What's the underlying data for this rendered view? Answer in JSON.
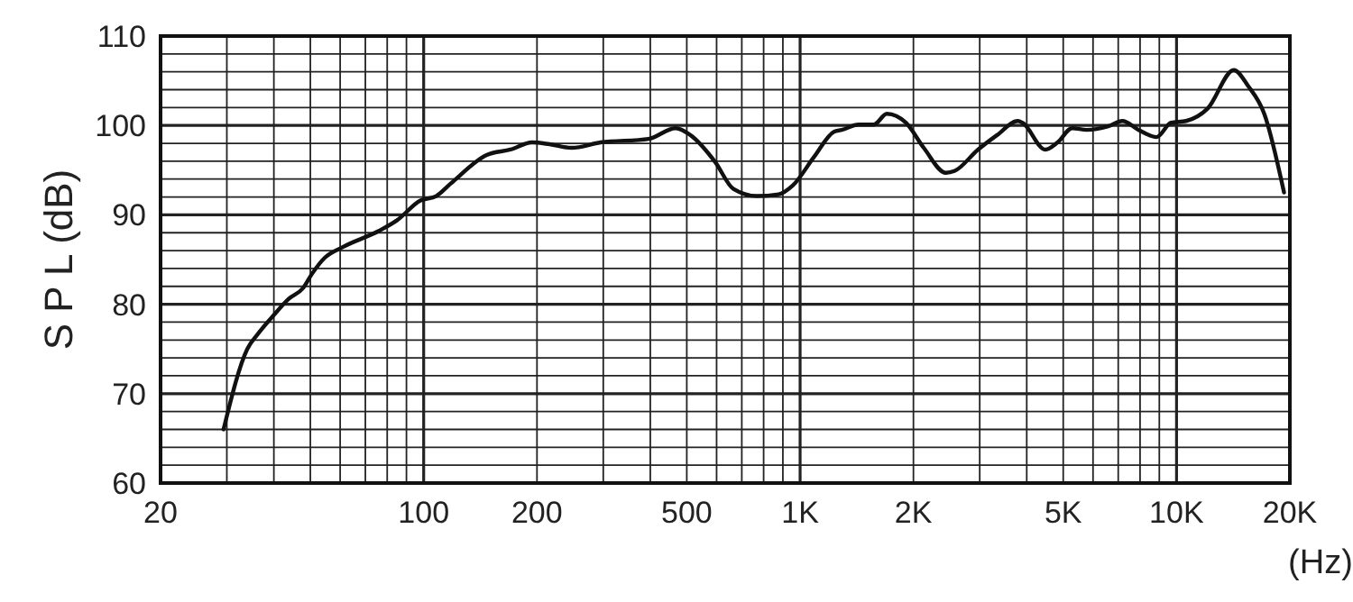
{
  "chart_data": {
    "type": "line",
    "ylabel": "S P L (dB)",
    "xlabel": "(Hz)",
    "log": "x",
    "grid": true,
    "line_style": "solid",
    "marker": "none",
    "xlim": [
      20,
      20000
    ],
    "ylim": [
      60,
      110
    ],
    "xticks": [
      {
        "value": 20,
        "label": "20"
      },
      {
        "value": 30,
        "label": null
      },
      {
        "value": 40,
        "label": null
      },
      {
        "value": 50,
        "label": null
      },
      {
        "value": 60,
        "label": null
      },
      {
        "value": 70,
        "label": null
      },
      {
        "value": 80,
        "label": null
      },
      {
        "value": 90,
        "label": null
      },
      {
        "value": 100,
        "label": "100"
      },
      {
        "value": 200,
        "label": "200"
      },
      {
        "value": 300,
        "label": null
      },
      {
        "value": 400,
        "label": null
      },
      {
        "value": 500,
        "label": "500"
      },
      {
        "value": 600,
        "label": null
      },
      {
        "value": 700,
        "label": null
      },
      {
        "value": 800,
        "label": null
      },
      {
        "value": 900,
        "label": null
      },
      {
        "value": 1000,
        "label": "1K"
      },
      {
        "value": 2000,
        "label": "2K"
      },
      {
        "value": 3000,
        "label": null
      },
      {
        "value": 4000,
        "label": null
      },
      {
        "value": 5000,
        "label": "5K"
      },
      {
        "value": 6000,
        "label": null
      },
      {
        "value": 7000,
        "label": null
      },
      {
        "value": 8000,
        "label": null
      },
      {
        "value": 9000,
        "label": null
      },
      {
        "value": 10000,
        "label": "10K"
      },
      {
        "value": 20000,
        "label": "20K"
      }
    ],
    "yticks": [
      60,
      {
        "value": 62,
        "label": null
      },
      {
        "value": 64,
        "label": null
      },
      {
        "value": 66,
        "label": null
      },
      {
        "value": 68,
        "label": null
      },
      70,
      {
        "value": 72,
        "label": null
      },
      {
        "value": 74,
        "label": null
      },
      {
        "value": 76,
        "label": null
      },
      {
        "value": 78,
        "label": null
      },
      80,
      {
        "value": 82,
        "label": null
      },
      {
        "value": 84,
        "label": null
      },
      {
        "value": 86,
        "label": null
      },
      {
        "value": 88,
        "label": null
      },
      90,
      {
        "value": 92,
        "label": null
      },
      {
        "value": 94,
        "label": null
      },
      {
        "value": 96,
        "label": null
      },
      {
        "value": 98,
        "label": null
      },
      100,
      {
        "value": 102,
        "label": null
      },
      {
        "value": 104,
        "label": null
      },
      {
        "value": 106,
        "label": null
      },
      {
        "value": 108,
        "label": null
      },
      110
    ],
    "series": [
      {
        "color": "#111111",
        "x": [
          29.4,
          34,
          36.3,
          40,
          43.8,
          47.8,
          50.5,
          54.6,
          61,
          76,
          85,
          98,
          108,
          118,
          147,
          170,
          194,
          216,
          247,
          295,
          396,
          467,
          512,
          595,
          665,
          768,
          877,
          957,
          1090,
          1230,
          1290,
          1430,
          1570,
          1700,
          1910,
          2130,
          2440,
          2570,
          2970,
          3330,
          3790,
          3900,
          4480,
          4830,
          5280,
          5770,
          6580,
          7180,
          7930,
          8860,
          9670,
          10600,
          12100,
          14200,
          15500,
          17100,
          19300
        ],
        "values": [
          66,
          75,
          76.7,
          78.8,
          80.6,
          81.8,
          83.4,
          85.2,
          86.4,
          88.2,
          89.4,
          91.6,
          92.1,
          93.5,
          96.7,
          97.3,
          98.1,
          97.9,
          97.5,
          98.1,
          98.5,
          99.7,
          98.9,
          95.9,
          92.9,
          92.1,
          92.3,
          93.3,
          96.5,
          99.3,
          99.5,
          100.1,
          100.1,
          101.3,
          100.3,
          97.5,
          94.7,
          94.9,
          97.3,
          98.9,
          100.5,
          100.3,
          97.3,
          98.1,
          99.7,
          99.5,
          99.9,
          100.5,
          99.5,
          98.7,
          100.3,
          100.5,
          101.9,
          106.2,
          104.4,
          101.3,
          92.5
        ]
      }
    ]
  }
}
